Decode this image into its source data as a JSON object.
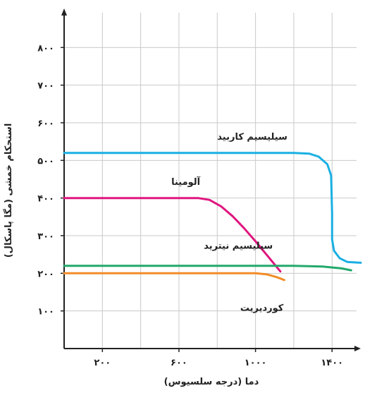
{
  "chart_data": {
    "type": "line",
    "xlabel": "دما (درجه سلسیوس)",
    "ylabel": "استحکام خمشی (مگا پاسکال)",
    "xlim": [
      0,
      1550
    ],
    "ylim": [
      0,
      900
    ],
    "x_ticks": [
      {
        "value": 200,
        "label": "۲۰۰"
      },
      {
        "value": 600,
        "label": "۶۰۰"
      },
      {
        "value": 1000,
        "label": "۱۰۰۰"
      },
      {
        "value": 1400,
        "label": "۱۴۰۰"
      }
    ],
    "y_ticks": [
      {
        "value": 100,
        "label": "۱۰۰"
      },
      {
        "value": 200,
        "label": "۲۰۰"
      },
      {
        "value": 300,
        "label": "۳۰۰"
      },
      {
        "value": 400,
        "label": "۴۰۰"
      },
      {
        "value": 500,
        "label": "۵۰۰"
      },
      {
        "value": 600,
        "label": "۶۰۰"
      },
      {
        "value": 700,
        "label": "۷۰۰"
      },
      {
        "value": 800,
        "label": "۸۰۰"
      }
    ],
    "grid": true,
    "series": [
      {
        "name": "سیلیسیم کاربید",
        "color": "#1ab0e3",
        "points": [
          [
            0,
            520
          ],
          [
            1200,
            520
          ],
          [
            1280,
            518
          ],
          [
            1330,
            510
          ],
          [
            1375,
            490
          ],
          [
            1395,
            460
          ],
          [
            1400,
            360
          ],
          [
            1400,
            290
          ],
          [
            1410,
            260
          ],
          [
            1440,
            240
          ],
          [
            1480,
            230
          ],
          [
            1550,
            228
          ]
        ]
      },
      {
        "name": "آلومینا",
        "color": "#e0167f",
        "points": [
          [
            0,
            400
          ],
          [
            700,
            400
          ],
          [
            760,
            395
          ],
          [
            820,
            378
          ],
          [
            880,
            352
          ],
          [
            940,
            320
          ],
          [
            1000,
            285
          ],
          [
            1060,
            248
          ],
          [
            1130,
            205
          ]
        ]
      },
      {
        "name": "سیلیسیم نیترید",
        "color": "#22a96b",
        "points": [
          [
            0,
            220
          ],
          [
            1200,
            220
          ],
          [
            1350,
            218
          ],
          [
            1450,
            213
          ],
          [
            1500,
            208
          ]
        ]
      },
      {
        "name": "کوردیریت",
        "color": "#f28c28",
        "points": [
          [
            0,
            200
          ],
          [
            1000,
            200
          ],
          [
            1060,
            197
          ],
          [
            1110,
            190
          ],
          [
            1150,
            182
          ]
        ]
      }
    ]
  }
}
